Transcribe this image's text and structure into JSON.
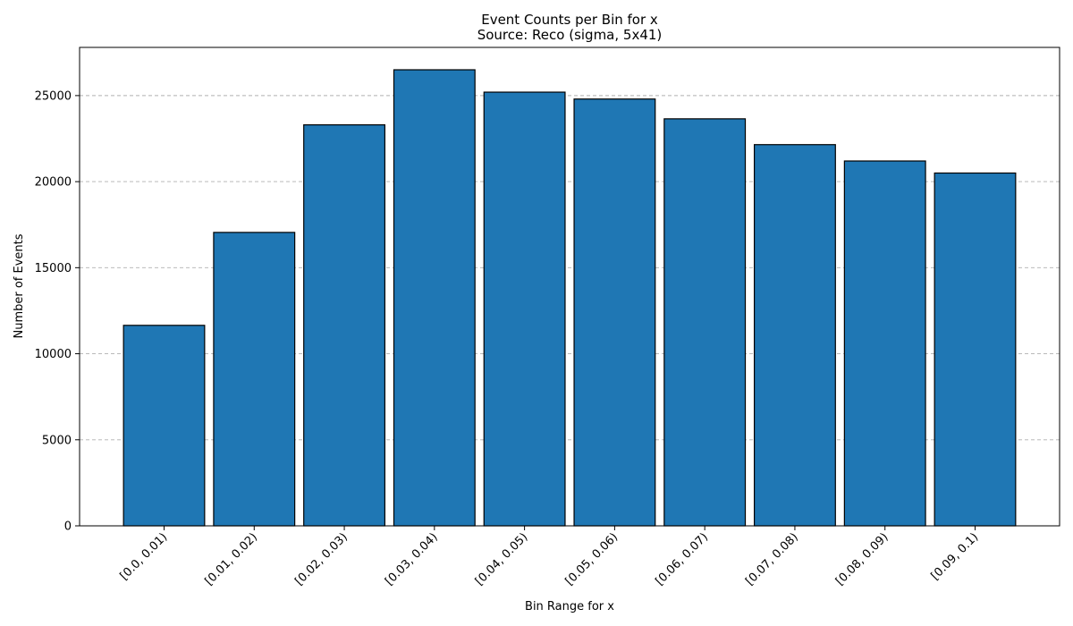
{
  "chart_data": {
    "type": "bar",
    "title": "Event Counts per Bin for x",
    "subtitle": "Source: Reco (sigma, 5x41)",
    "xlabel": "Bin Range for x",
    "ylabel": "Number of Events",
    "categories": [
      "[0.0, 0.01)",
      "[0.01, 0.02)",
      "[0.02, 0.03)",
      "[0.03, 0.04)",
      "[0.04, 0.05)",
      "[0.05, 0.06)",
      "[0.06, 0.07)",
      "[0.07, 0.08)",
      "[0.08, 0.09)",
      "[0.09, 0.1)"
    ],
    "values": [
      11650,
      17050,
      23300,
      26500,
      25200,
      24800,
      23650,
      22150,
      21200,
      20500
    ],
    "ylim": [
      0,
      27800
    ],
    "yticks": [
      0,
      5000,
      10000,
      15000,
      20000,
      25000
    ],
    "ytick_labels": [
      "0",
      "5000",
      "10000",
      "15000",
      "20000",
      "25000"
    ],
    "grid": "y-dashed",
    "bar_color": "#1f77b4",
    "edge_color": "#000000"
  }
}
